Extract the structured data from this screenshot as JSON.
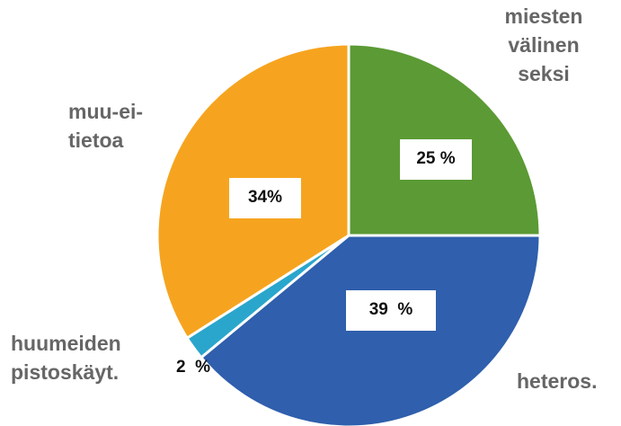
{
  "chart_data": {
    "type": "pie",
    "categories": [
      "miesten\nvälinen\nseksi",
      "heteros.",
      "huumeiden\npistoskäyt.",
      "muu-ei-\ntietoa"
    ],
    "values": [
      25,
      39,
      2,
      34
    ],
    "value_labels": [
      "25 %",
      "39  %",
      "2  %",
      "34%"
    ],
    "colors": [
      "#5b9a34",
      "#2f5fad",
      "#2aa6cc",
      "#f6a41f"
    ]
  }
}
